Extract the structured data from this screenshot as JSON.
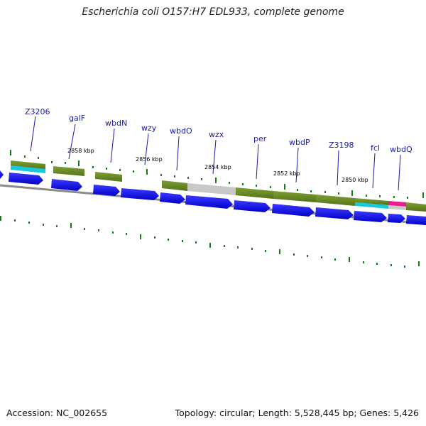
{
  "title": "Escherichia coli O157:H7 EDL933, complete genome",
  "footer": {
    "accession": "Accession: NC_002655",
    "summary": "Topology: circular; Length: 5,528,445 bp; Genes: 5,426"
  },
  "genes": [
    {
      "label": "Z3206"
    },
    {
      "label": "galF"
    },
    {
      "label": "wbdN"
    },
    {
      "label": "wzy"
    },
    {
      "label": "wbdO"
    },
    {
      "label": "wzx"
    },
    {
      "label": "per"
    },
    {
      "label": "wbdP"
    },
    {
      "label": "Z3198"
    },
    {
      "label": "fcl"
    },
    {
      "label": "wbdQ"
    }
  ],
  "scale_labels": [
    "2858 kbp",
    "2856 kbp",
    "2854 kbp",
    "2852 kbp",
    "2850 kbp"
  ],
  "colors": {
    "gene_label": "#1a1aa8",
    "cds_arrow": "#0000e6",
    "feature_green": "#6b8e23",
    "feature_gray": "#c8c8c8",
    "feature_cyan": "#17c9d9",
    "feature_pink": "#ee1a8c",
    "tick_green": "#1a7a1a",
    "backbone": "#777777"
  }
}
